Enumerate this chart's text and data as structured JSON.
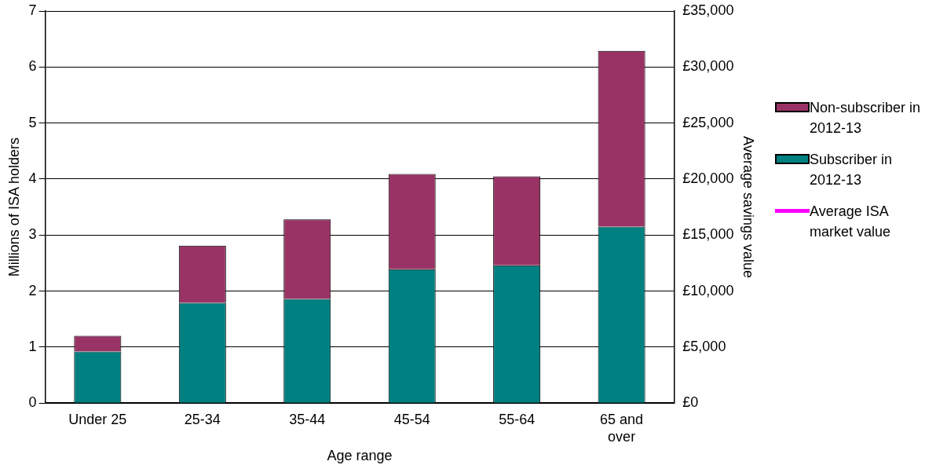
{
  "chart_data": {
    "type": "bar",
    "stacked": true,
    "xlabel": "Age range",
    "ylabel": "Millions of ISA holders",
    "y2label": "Average savings value",
    "categories": [
      "Under 25",
      "25-34",
      "35-44",
      "45-54",
      "55-64",
      "65 and over"
    ],
    "series": [
      {
        "name": "Subscriber in 2012-13",
        "color": "#008080",
        "values": [
          0.92,
          1.79,
          1.86,
          2.39,
          2.46,
          3.15
        ]
      },
      {
        "name": "Non-subscriber in 2012-13",
        "color": "#993366",
        "values": [
          0.28,
          1.02,
          1.42,
          1.7,
          1.59,
          3.14
        ]
      },
      {
        "name": "Average ISA market value",
        "type": "line",
        "color": "#ff00ff",
        "values": [
          null,
          null,
          null,
          null,
          null,
          null
        ]
      }
    ],
    "ylim": [
      0,
      7
    ],
    "yticks": [
      0,
      1,
      2,
      3,
      4,
      5,
      6,
      7
    ],
    "y2lim": [
      0,
      35000
    ],
    "y2ticks": [
      {
        "value": 0,
        "label": "£0"
      },
      {
        "value": 5000,
        "label": "£5,000"
      },
      {
        "value": 10000,
        "label": "£10,000"
      },
      {
        "value": 15000,
        "label": "£15,000"
      },
      {
        "value": 20000,
        "label": "£20,000"
      },
      {
        "value": 25000,
        "label": "£25,000"
      },
      {
        "value": 30000,
        "label": "£30,000"
      },
      {
        "value": 35000,
        "label": "£35,000"
      }
    ],
    "grid": "y",
    "legend": "right"
  }
}
